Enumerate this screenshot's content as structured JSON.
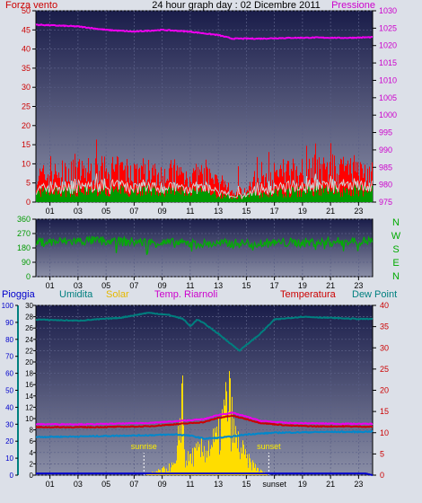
{
  "header": {
    "left_label": "Forza vento",
    "title": "24 hour graph day : 02 Dicembre 2011",
    "right_label": "Pressione"
  },
  "compass_letters": [
    "N",
    "W",
    "S",
    "E",
    "N"
  ],
  "bottom_legend": {
    "rain": "Pioggia",
    "humidity": "Umidita",
    "solar": "Solar",
    "temp_other": "Temp. Riarnoli",
    "temperature": "Temperatura",
    "dew_point": "Dew Point"
  },
  "colors": {
    "wind_gust": "#ff0000",
    "wind_avg": "#009900",
    "wind_line": "#d0d0d0",
    "pressure": "#ee00ee",
    "direction": "#00b000",
    "rain": "#0000cc",
    "humidity": "#007f7f",
    "solar": "#ffdd00",
    "temp_other": "#ee00ee",
    "temperature": "#cc0000",
    "dew_point": "#0088cc",
    "panel_top": "#1a1d4a",
    "panel_bottom": "#8a8ea6"
  },
  "chart_data": [
    {
      "type": "area",
      "name": "wind-pressure",
      "x_ticks": [
        "01",
        "03",
        "05",
        "07",
        "09",
        "11",
        "13",
        "15",
        "17",
        "19",
        "21",
        "23"
      ],
      "y_left": {
        "ticks": [
          0,
          5,
          10,
          15,
          20,
          25,
          30,
          35,
          40,
          45,
          50
        ],
        "ylim": [
          0,
          50
        ]
      },
      "y_right": {
        "ticks": [
          975,
          980,
          985,
          990,
          995,
          1000,
          1005,
          1010,
          1015,
          1020,
          1025,
          1030
        ],
        "ylim": [
          975,
          1030
        ]
      },
      "pressure": {
        "hours": [
          0,
          3,
          5,
          7,
          9,
          11,
          13,
          14,
          16,
          18,
          20,
          22,
          24
        ],
        "values": [
          1026,
          1025.5,
          1024.5,
          1024,
          1024.5,
          1024,
          1023,
          1022,
          1022,
          1022.2,
          1022.3,
          1022.2,
          1022.4
        ]
      },
      "gust_envelope": {
        "hours": [
          0,
          2,
          4,
          6,
          8,
          10,
          12,
          13,
          14,
          15,
          16,
          18,
          20,
          22,
          24
        ],
        "values": [
          9,
          10,
          11,
          11,
          11,
          10,
          9,
          6,
          4,
          4,
          8,
          11,
          12,
          11,
          10
        ]
      },
      "avg_envelope": {
        "hours": [
          0,
          4,
          8,
          12,
          14,
          16,
          20,
          24
        ],
        "values": [
          3,
          3.5,
          3.5,
          3,
          1.5,
          2.5,
          3.5,
          3.5
        ]
      }
    },
    {
      "type": "scatter",
      "name": "wind-direction",
      "x_ticks": [
        "01",
        "03",
        "05",
        "07",
        "09",
        "11",
        "13",
        "15",
        "17",
        "19",
        "21",
        "23"
      ],
      "y_left": {
        "ticks": [
          0,
          90,
          180,
          270,
          360
        ],
        "ylim": [
          0,
          360
        ]
      },
      "direction": {
        "hours": [
          0,
          4,
          8,
          12,
          16,
          20,
          24
        ],
        "values": [
          215,
          225,
          215,
          205,
          210,
          215,
          225
        ]
      }
    },
    {
      "type": "line",
      "name": "temp-humidity-solar",
      "x_ticks": [
        "01",
        "03",
        "05",
        "07",
        "09",
        "11",
        "13",
        "15",
        "17",
        "19",
        "21",
        "23"
      ],
      "sunrise": {
        "label": "sunrise",
        "hour": 7.7
      },
      "sunset": {
        "label": "sunset",
        "hour": 16.6
      },
      "x_extra_label": "sunset",
      "y_rain": {
        "ticks": [
          0,
          10,
          20,
          30,
          40,
          50,
          60,
          70,
          80,
          90,
          100
        ],
        "ylim": [
          0,
          100
        ]
      },
      "y_hum": {
        "ticks": [
          0,
          2,
          4,
          6,
          8,
          10,
          12,
          14,
          16,
          18,
          20,
          22,
          24,
          26,
          28,
          30
        ],
        "ylim": [
          0,
          30
        ]
      },
      "y_temp": {
        "ticks": [
          0,
          5,
          10,
          15,
          20,
          25,
          30,
          35,
          40
        ],
        "ylim": [
          0,
          40
        ]
      },
      "humidity": {
        "hours": [
          0,
          3,
          6,
          8,
          9.5,
          10.5,
          11,
          11.5,
          12,
          13,
          14,
          14.5,
          15,
          16,
          17,
          19,
          21,
          23,
          24
        ],
        "values": [
          27.5,
          27.3,
          27.8,
          28.7,
          28.3,
          27.6,
          26.3,
          27.5,
          26.8,
          25,
          23,
          22,
          23,
          25,
          27.5,
          28,
          27.8,
          27.6,
          27.6
        ]
      },
      "temperature": {
        "hours": [
          0,
          4,
          8,
          10,
          12,
          13,
          14,
          15,
          16,
          18,
          20,
          22,
          24
        ],
        "values": [
          11.3,
          11.3,
          11.5,
          12,
          12.5,
          13.5,
          14,
          13.2,
          12.3,
          11.7,
          11.5,
          11.5,
          11.4
        ]
      },
      "temp_other": {
        "hours": [
          0,
          4,
          8,
          10,
          12,
          13,
          14,
          15,
          16,
          18,
          20,
          22,
          24
        ],
        "values": [
          12,
          12,
          12.3,
          12.7,
          13.2,
          14.2,
          14.7,
          13.8,
          12.8,
          12.3,
          12.2,
          12.1,
          12.1
        ]
      },
      "dew_point": {
        "hours": [
          0,
          3,
          6,
          8,
          10,
          11,
          12,
          13,
          14,
          15,
          17,
          19,
          21,
          23,
          24
        ],
        "values": [
          9,
          9.1,
          9.3,
          9.4,
          9.6,
          9.3,
          8.6,
          8.8,
          9.1,
          9.6,
          10,
          10.1,
          10.2,
          10.2,
          10.3
        ]
      },
      "rain": {
        "hours": [
          0,
          23.5,
          24
        ],
        "values": [
          1,
          1,
          0
        ]
      },
      "solar": {
        "hours": [
          7.7,
          9,
          10,
          10.4,
          10.6,
          11,
          12,
          13,
          13.7,
          14.1,
          15,
          16,
          16.6
        ],
        "values": [
          0,
          4,
          8,
          70,
          10,
          14,
          20,
          28,
          60,
          30,
          12,
          3,
          0
        ]
      }
    }
  ]
}
